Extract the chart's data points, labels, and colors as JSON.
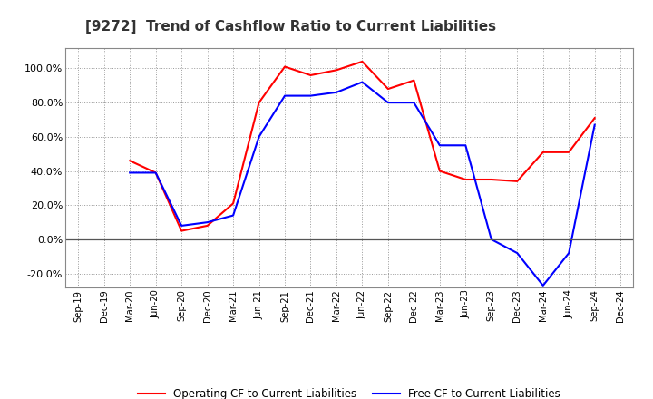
{
  "title": "[9272]  Trend of Cashflow Ratio to Current Liabilities",
  "x_labels": [
    "Sep-19",
    "Dec-19",
    "Mar-20",
    "Jun-20",
    "Sep-20",
    "Dec-20",
    "Mar-21",
    "Jun-21",
    "Sep-21",
    "Dec-21",
    "Mar-22",
    "Jun-22",
    "Sep-22",
    "Dec-22",
    "Mar-23",
    "Jun-23",
    "Sep-23",
    "Dec-23",
    "Mar-24",
    "Jun-24",
    "Sep-24",
    "Dec-24"
  ],
  "operating_cf": [
    null,
    null,
    46.0,
    39.0,
    5.0,
    8.0,
    21.0,
    80.0,
    101.0,
    96.0,
    99.0,
    104.0,
    88.0,
    93.0,
    40.0,
    35.0,
    35.0,
    34.0,
    51.0,
    51.0,
    71.0,
    null
  ],
  "free_cf": [
    null,
    null,
    39.0,
    39.0,
    8.0,
    10.0,
    14.0,
    60.0,
    84.0,
    84.0,
    86.0,
    92.0,
    80.0,
    80.0,
    55.0,
    55.0,
    0.0,
    -8.0,
    -27.0,
    -8.0,
    67.0,
    null
  ],
  "operating_cf_color": "#FF0000",
  "free_cf_color": "#0000FF",
  "ylim": [
    -28.0,
    112.0
  ],
  "yticks": [
    -20.0,
    0.0,
    20.0,
    40.0,
    60.0,
    80.0,
    100.0
  ],
  "legend_labels": [
    "Operating CF to Current Liabilities",
    "Free CF to Current Liabilities"
  ],
  "background_color": "#FFFFFF",
  "grid_color": "#999999",
  "title_color": "#333333"
}
